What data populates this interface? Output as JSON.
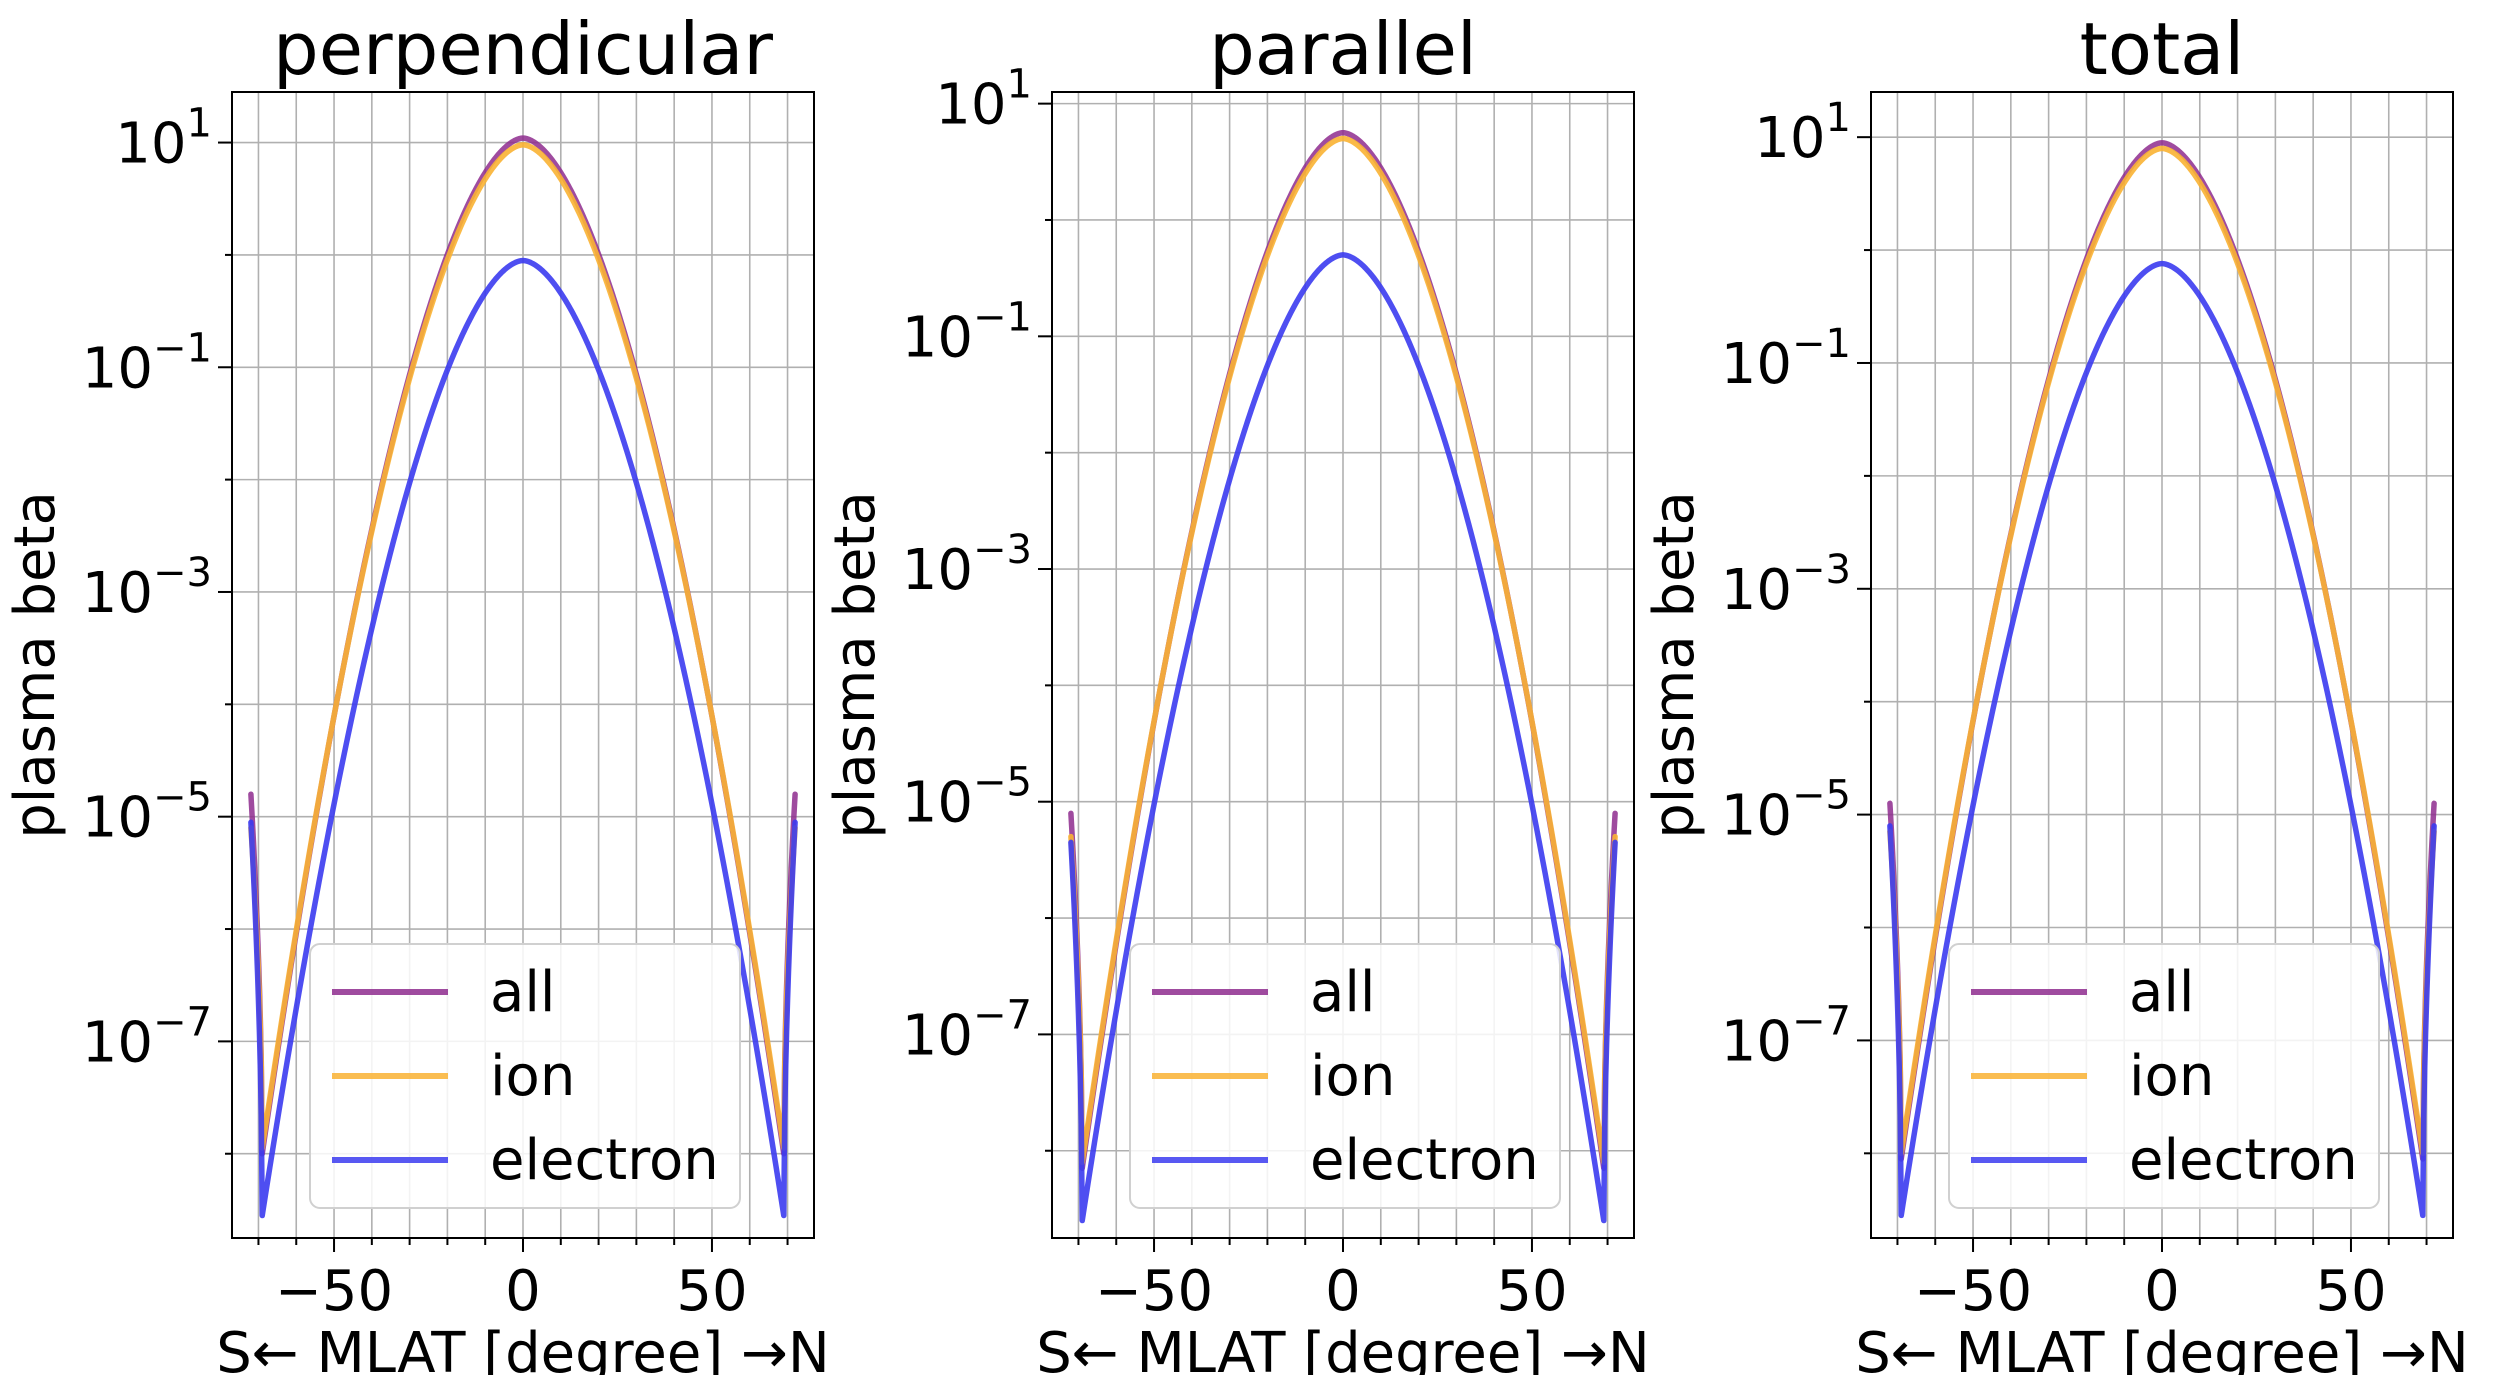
{
  "chart_data": [
    {
      "type": "line",
      "title": "perpendicular",
      "xlabel": "S← MLAT [degree] →N",
      "ylabel": "plasma beta",
      "yscale": "log",
      "xlim": [
        -77,
        77
      ],
      "ylim": [
        -8.75,
        1.45
      ],
      "xticks": [
        -50,
        0,
        50
      ],
      "xtick_labels": [
        "−50",
        "0",
        "50"
      ],
      "yticks": [
        1,
        -1,
        -3,
        -5,
        -7
      ],
      "ytick_labels": [
        {
          "base": "10",
          "exp": "1"
        },
        {
          "base": "10",
          "exp": "−1"
        },
        {
          "base": "10",
          "exp": "−3"
        },
        {
          "base": "10",
          "exp": "−5"
        },
        {
          "base": "10",
          "exp": "−7"
        }
      ],
      "grid": true,
      "legend_position": "lower-center",
      "series": [
        {
          "name": "all",
          "color": "#8e2c8e",
          "peak_log": 1.04,
          "min_log": -8.0,
          "end_log": -4.8
        },
        {
          "name": "ion",
          "color": "#f9b233",
          "peak_log": 0.98,
          "min_log": -7.95,
          "end_log": -5.1
        },
        {
          "name": "electron",
          "color": "#3b3bf0",
          "peak_log": -0.05,
          "min_log": -8.55,
          "end_log": -5.05
        }
      ]
    },
    {
      "type": "line",
      "title": "parallel",
      "xlabel": "S← MLAT [degree] →N",
      "ylabel": "plasma beta",
      "yscale": "log",
      "xlim": [
        -77,
        77
      ],
      "ylim": [
        -8.75,
        1.1
      ],
      "xticks": [
        -50,
        0,
        50
      ],
      "xtick_labels": [
        "−50",
        "0",
        "50"
      ],
      "yticks": [
        1,
        -1,
        -3,
        -5,
        -7
      ],
      "ytick_labels": [
        {
          "base": "10",
          "exp": "1"
        },
        {
          "base": "10",
          "exp": "−1"
        },
        {
          "base": "10",
          "exp": "−3"
        },
        {
          "base": "10",
          "exp": "−5"
        },
        {
          "base": "10",
          "exp": "−7"
        }
      ],
      "grid": true,
      "legend_position": "lower-center",
      "series": [
        {
          "name": "all",
          "color": "#8e2c8e",
          "peak_log": 0.75,
          "min_log": -8.15,
          "end_log": -5.1
        },
        {
          "name": "ion",
          "color": "#f9b233",
          "peak_log": 0.7,
          "min_log": -8.1,
          "end_log": -5.3
        },
        {
          "name": "electron",
          "color": "#3b3bf0",
          "peak_log": -0.3,
          "min_log": -8.6,
          "end_log": -5.35
        }
      ]
    },
    {
      "type": "line",
      "title": "total",
      "xlabel": "S← MLAT [degree] →N",
      "ylabel": "plasma beta",
      "yscale": "log",
      "xlim": [
        -77,
        77
      ],
      "ylim": [
        -8.75,
        1.4
      ],
      "xticks": [
        -50,
        0,
        50
      ],
      "xtick_labels": [
        "−50",
        "0",
        "50"
      ],
      "yticks": [
        1,
        -1,
        -3,
        -5,
        -7
      ],
      "ytick_labels": [
        {
          "base": "10",
          "exp": "1"
        },
        {
          "base": "10",
          "exp": "−1"
        },
        {
          "base": "10",
          "exp": "−3"
        },
        {
          "base": "10",
          "exp": "−5"
        },
        {
          "base": "10",
          "exp": "−7"
        }
      ],
      "grid": true,
      "legend_position": "lower-center",
      "series": [
        {
          "name": "all",
          "color": "#8e2c8e",
          "peak_log": 0.95,
          "min_log": -8.05,
          "end_log": -4.9
        },
        {
          "name": "ion",
          "color": "#f9b233",
          "peak_log": 0.9,
          "min_log": -8.0,
          "end_log": -5.15
        },
        {
          "name": "electron",
          "color": "#3b3bf0",
          "peak_log": -0.12,
          "min_log": -8.55,
          "end_log": -5.1
        }
      ]
    }
  ]
}
